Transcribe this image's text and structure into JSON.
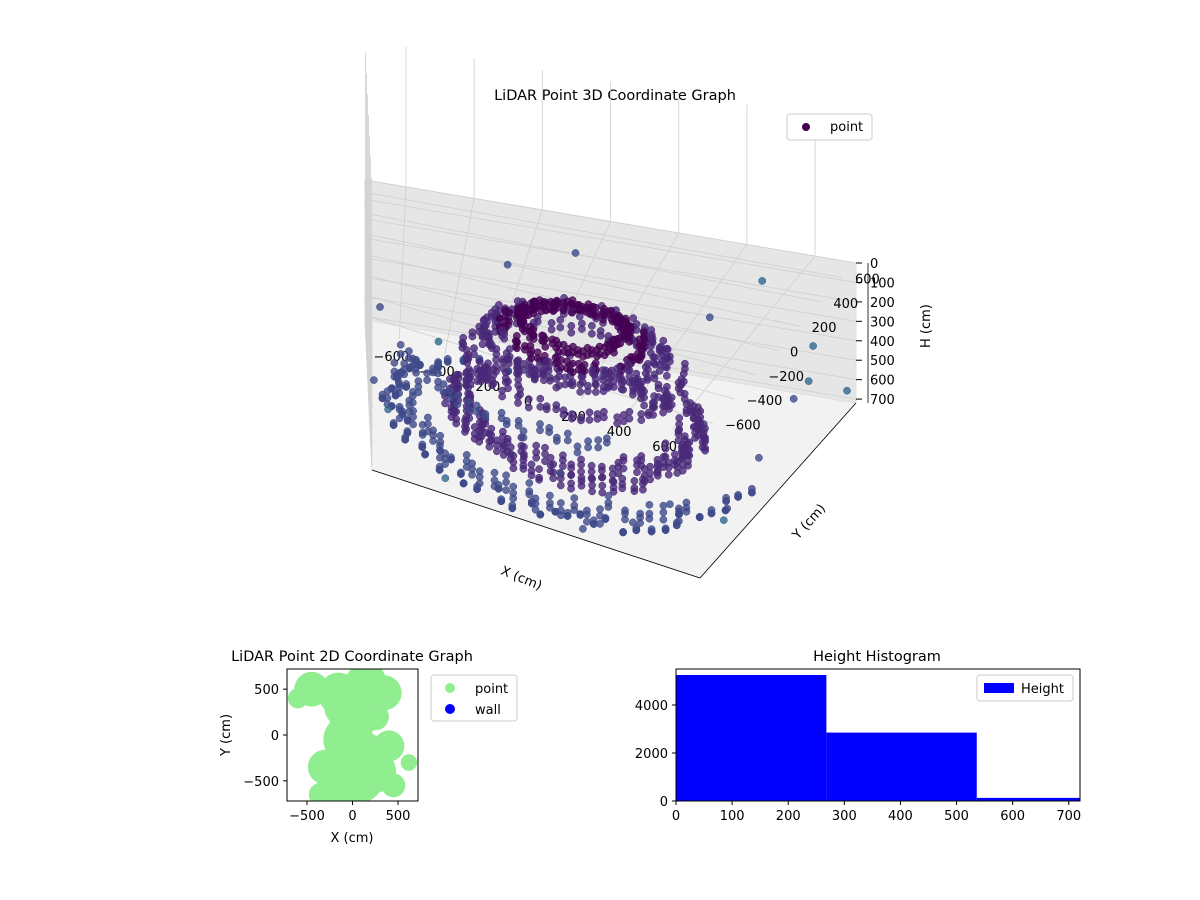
{
  "chart_data": [
    {
      "type": "scatter",
      "projection": "3d",
      "title": "LiDAR Point 3D Coordinate Graph",
      "xlabel": "X (cm)",
      "ylabel": "Y (cm)",
      "zlabel": "H (cm)",
      "xlim": [
        -720,
        720
      ],
      "ylim": [
        -720,
        720
      ],
      "zlim": [
        0,
        720
      ],
      "z_inverted": true,
      "xticks": [
        "−600",
        "−400",
        "−200",
        "0",
        "200",
        "400",
        "600"
      ],
      "yticks": [
        "−600",
        "−400",
        "−200",
        "0",
        "200",
        "400",
        "600"
      ],
      "zticks": [
        "0",
        "100",
        "200",
        "300",
        "400",
        "500",
        "600",
        "700"
      ],
      "grid": true,
      "colormap": "viridis",
      "legend": {
        "placement": "upper-right",
        "entries": [
          "point"
        ]
      },
      "series": [
        {
          "name": "point",
          "color": "#440154",
          "rings": [
            {
              "r": 620,
              "h": 700,
              "from": 120,
              "to": 360
            },
            {
              "r": 600,
              "h": 620,
              "from": 150,
              "to": 330
            },
            {
              "r": 420,
              "h": 600,
              "from": 0,
              "to": 360
            },
            {
              "r": 400,
              "h": 540,
              "from": 0,
              "to": 360
            },
            {
              "r": 360,
              "h": 320,
              "from": 0,
              "to": 360
            },
            {
              "r": 300,
              "h": 200,
              "from": 0,
              "to": 360
            },
            {
              "r": 250,
              "h": 150,
              "from": 0,
              "to": 360
            },
            {
              "r": 180,
              "h": 100,
              "from": 0,
              "to": 360
            },
            {
              "r": 600,
              "h": 300,
              "from": 200,
              "to": 300
            }
          ],
          "scattered": [
            [
              -700,
              100,
              690
            ],
            [
              -650,
              -500,
              500
            ],
            [
              700,
              700,
              650
            ],
            [
              600,
              700,
              450
            ],
            [
              -500,
              600,
              700
            ],
            [
              200,
              -700,
              680
            ],
            [
              400,
              -650,
              600
            ],
            [
              650,
              -300,
              650
            ],
            [
              -300,
              700,
              300
            ],
            [
              700,
              200,
              380
            ],
            [
              690,
              -100,
              500
            ],
            [
              680,
              400,
              420
            ],
            [
              500,
              -500,
              560
            ],
            [
              300,
              680,
              380
            ],
            [
              -680,
              -100,
              200
            ],
            [
              100,
              -700,
              430
            ],
            [
              -400,
              -700,
              650
            ],
            [
              720,
              -500,
              560
            ],
            [
              450,
              700,
              160
            ],
            [
              -100,
              700,
              180
            ]
          ]
        }
      ]
    },
    {
      "type": "scatter",
      "title": "LiDAR Point 2D Coordinate Graph",
      "xlabel": "X (cm)",
      "ylabel": "Y (cm)",
      "xlim": [
        -720,
        720
      ],
      "ylim": [
        -720,
        720
      ],
      "xticks": [
        "−500",
        "0",
        "500"
      ],
      "yticks": [
        "−500",
        "0",
        "500"
      ],
      "legend": {
        "placement": "outside-right",
        "entries": [
          "point",
          "wall"
        ]
      },
      "series": [
        {
          "name": "point",
          "color": "#90ee90"
        },
        {
          "name": "wall",
          "color": "#0000ff"
        }
      ],
      "blobs": [
        [
          -450,
          500,
          190
        ],
        [
          -150,
          450,
          230
        ],
        [
          150,
          560,
          230
        ],
        [
          350,
          460,
          190
        ],
        [
          -600,
          400,
          110
        ],
        [
          0,
          150,
          250
        ],
        [
          -50,
          -50,
          270
        ],
        [
          80,
          -250,
          300
        ],
        [
          50,
          -450,
          300
        ],
        [
          -150,
          -550,
          240
        ],
        [
          -300,
          -350,
          190
        ],
        [
          250,
          -400,
          230
        ],
        [
          400,
          -120,
          170
        ],
        [
          -350,
          -650,
          130
        ],
        [
          450,
          -550,
          130
        ],
        [
          620,
          -300,
          90
        ],
        [
          -100,
          300,
          210
        ],
        [
          250,
          200,
          150
        ]
      ]
    },
    {
      "type": "bar",
      "subtype": "histogram",
      "title": "Height Histogram",
      "xlim": [
        0,
        720
      ],
      "ylim": [
        0,
        5500
      ],
      "xticks": [
        "0",
        "100",
        "200",
        "300",
        "400",
        "500",
        "600",
        "700"
      ],
      "yticks": [
        "0",
        "2000",
        "4000"
      ],
      "legend": {
        "placement": "upper-right",
        "entries": [
          "Height"
        ]
      },
      "series": [
        {
          "name": "Height",
          "color": "#0000ff",
          "bins": [
            [
              0,
              268,
              5250
            ],
            [
              268,
              536,
              2850
            ],
            [
              536,
              720,
              130
            ]
          ]
        }
      ]
    }
  ]
}
